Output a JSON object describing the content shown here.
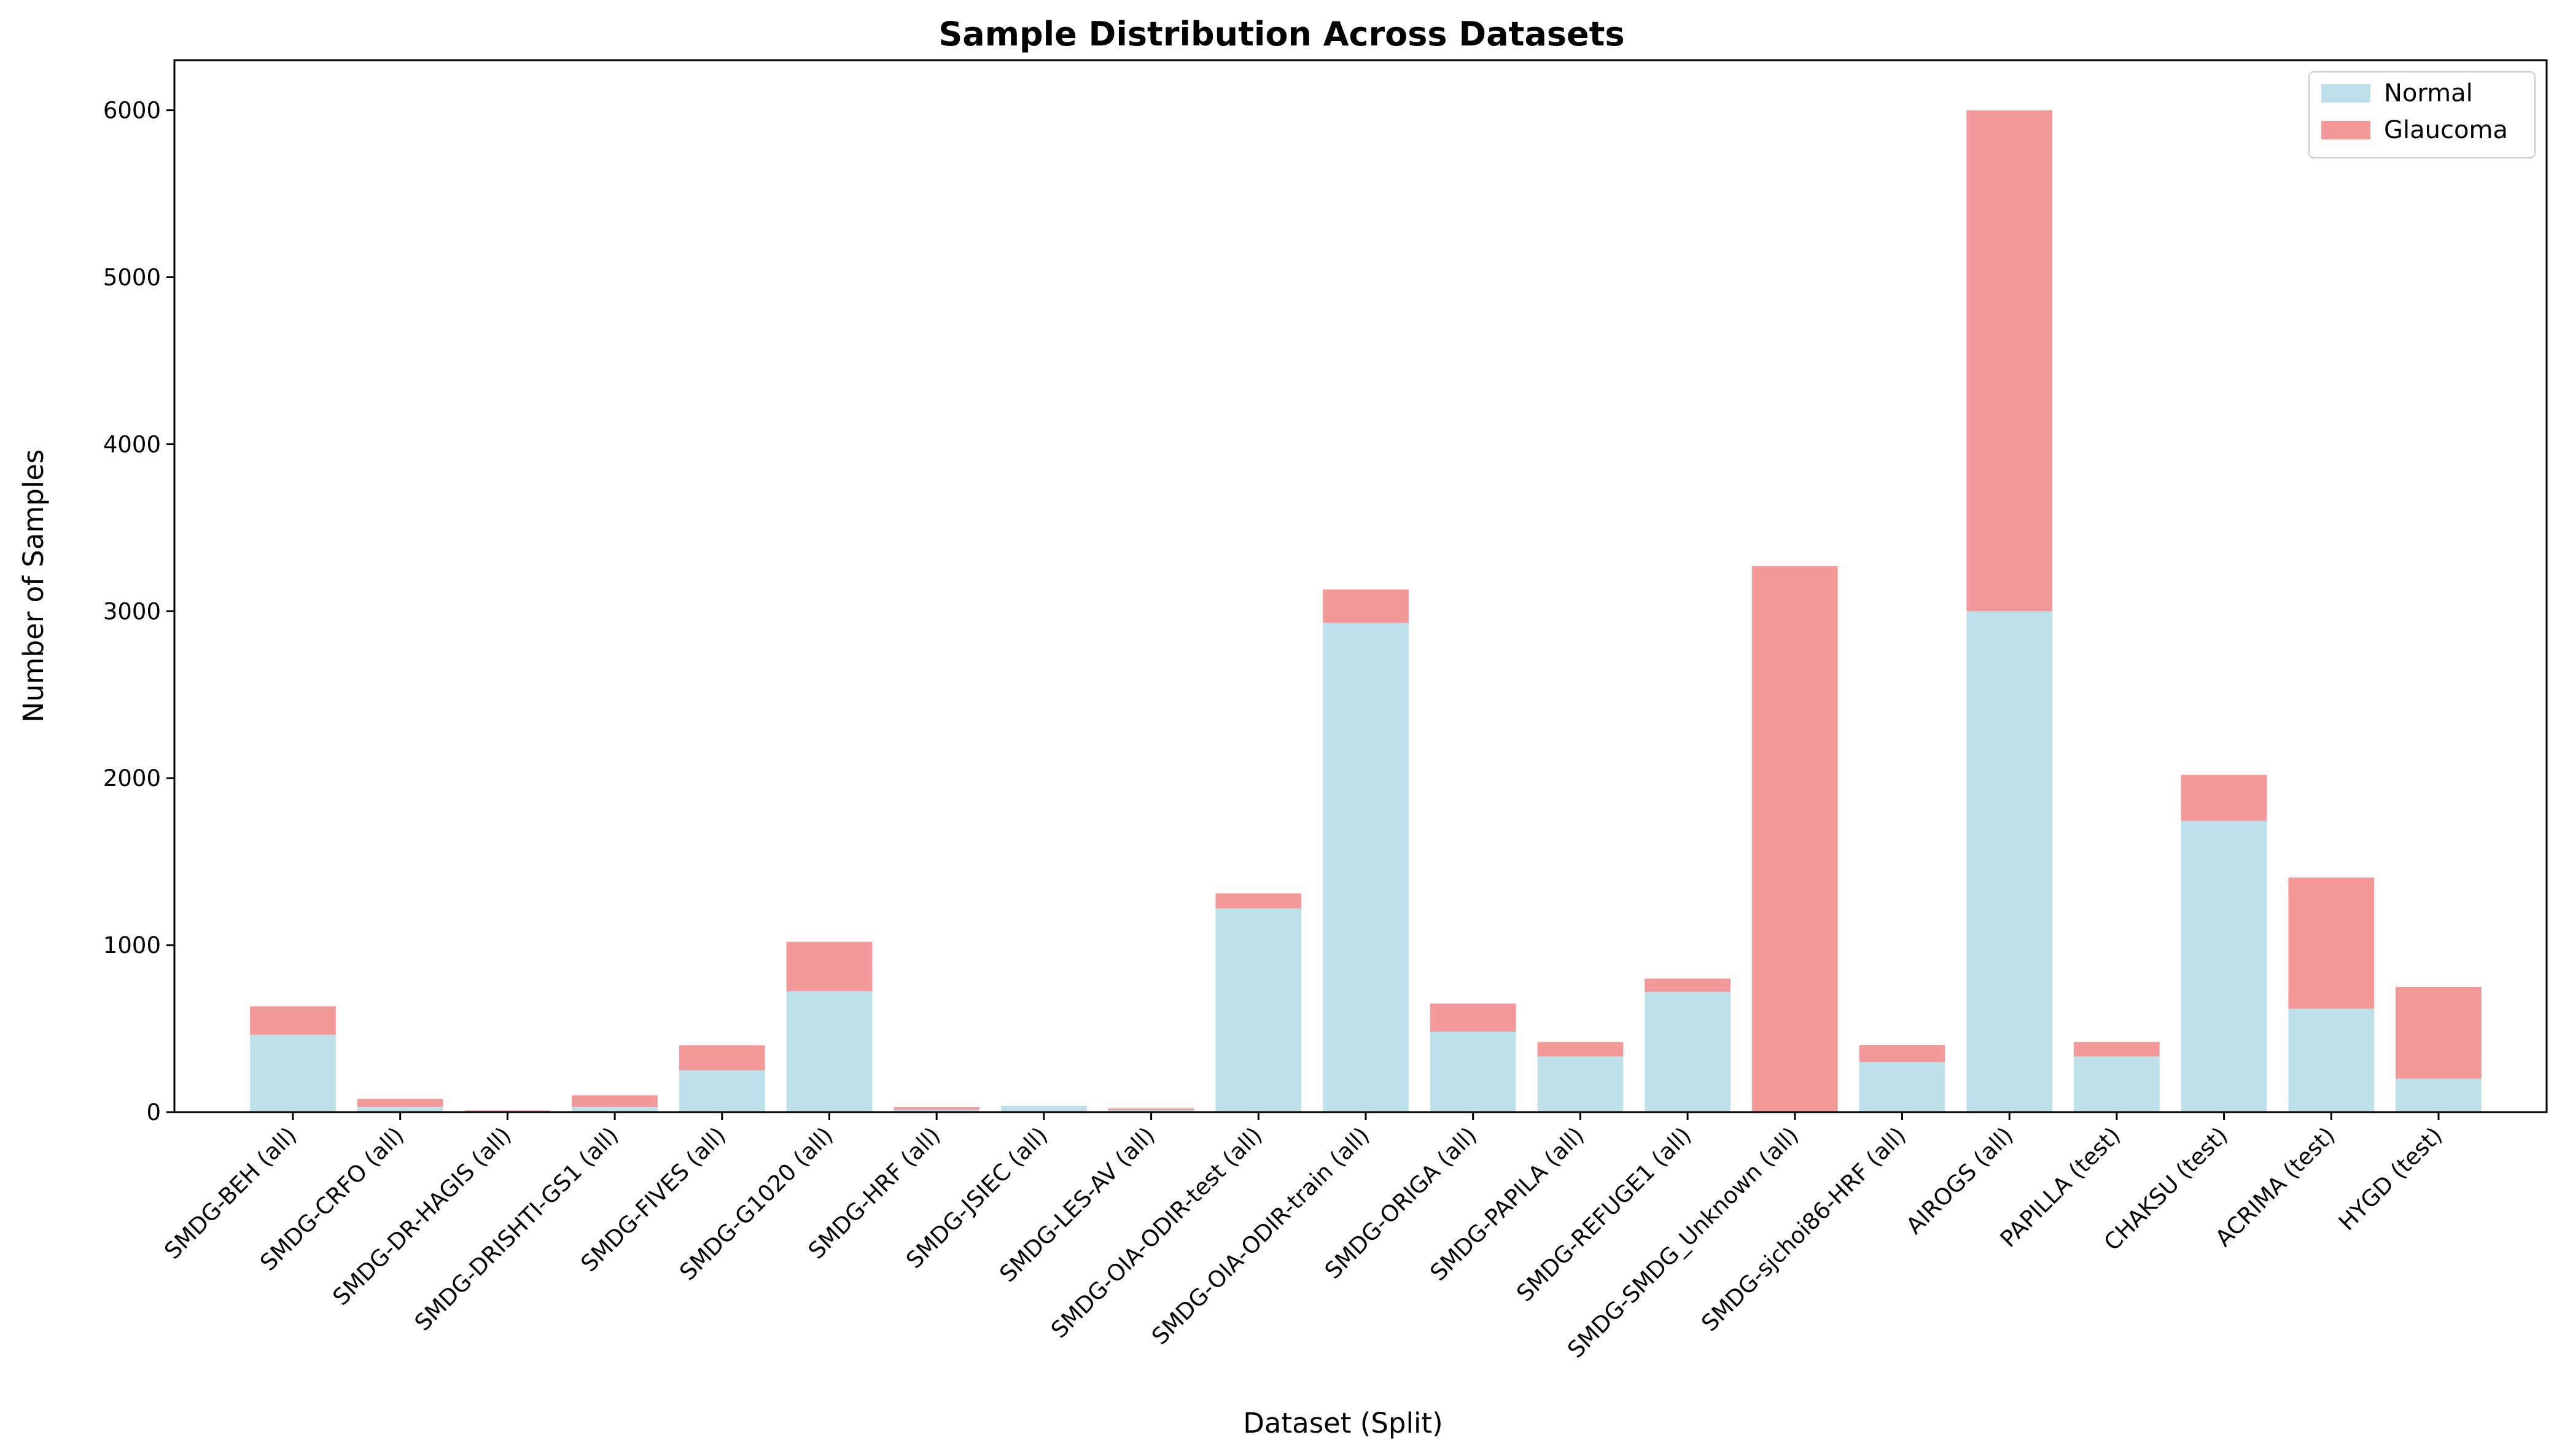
{
  "chart_data": {
    "type": "bar",
    "stacked": true,
    "title": "Sample Distribution Across Datasets",
    "xlabel": "Dataset (Split)",
    "ylabel": "Number of Samples",
    "ylim": [
      0,
      6300
    ],
    "yticks": [
      0,
      1000,
      2000,
      3000,
      4000,
      5000,
      6000
    ],
    "legend_position": "top-right",
    "categories": [
      "SMDG-BEH (all)",
      "SMDG-CRFO (all)",
      "SMDG-DR-HAGIS (all)",
      "SMDG-DRISHTI-GS1 (all)",
      "SMDG-FIVES (all)",
      "SMDG-G1020 (all)",
      "SMDG-HRF (all)",
      "SMDG-JSIEC (all)",
      "SMDG-LES-AV (all)",
      "SMDG-OIA-ODIR-test (all)",
      "SMDG-OIA-ODIR-train (all)",
      "SMDG-ORIGA (all)",
      "SMDG-PAPILA (all)",
      "SMDG-REFUGE1 (all)",
      "SMDG-SMDG_Unknown (all)",
      "SMDG-sjchoi86-HRF (all)",
      "AIROGS (all)",
      "PAPILLA (test)",
      "CHAKSU (test)",
      "ACRIMA (test)",
      "HYGD (test)"
    ],
    "series": [
      {
        "name": "Normal",
        "color": "#add8e6",
        "values": [
          463,
          31,
          0,
          31,
          250,
          724,
          15,
          38,
          11,
          1220,
          2930,
          482,
          333,
          720,
          0,
          300,
          3000,
          333,
          1744,
          619,
          200
        ]
      },
      {
        "name": "Glaucoma",
        "color": "#f08080",
        "values": [
          171,
          48,
          10,
          70,
          150,
          296,
          15,
          0,
          11,
          90,
          200,
          168,
          87,
          80,
          3270,
          101,
          3000,
          87,
          276,
          786,
          550
        ]
      }
    ]
  }
}
